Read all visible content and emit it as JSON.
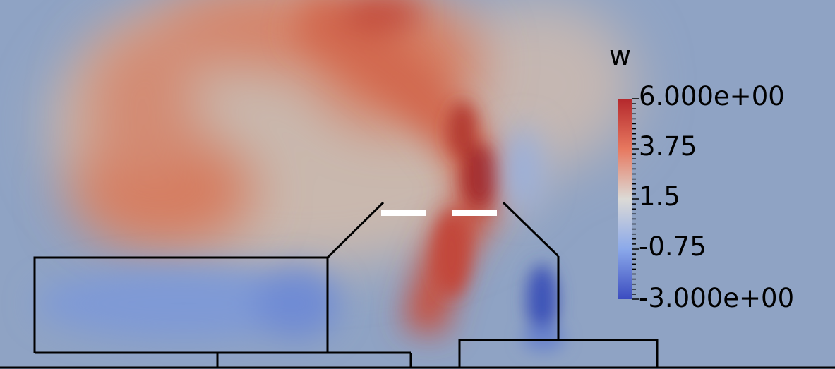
{
  "legend": {
    "title": "w",
    "ticks": [
      "6.000e+00",
      "3.75",
      "1.5",
      "-0.75",
      "-3.000e+00"
    ],
    "range": [
      -3.0,
      6.0
    ]
  },
  "colors": {
    "background": "#8fa3c4",
    "high": "#b4282c",
    "mid_high": "#e7785f",
    "neutral": "#dcdad6",
    "mid_low": "#8ba9ea",
    "low": "#3b4cc0",
    "outline": "#000000",
    "marker": "#ffffff"
  }
}
